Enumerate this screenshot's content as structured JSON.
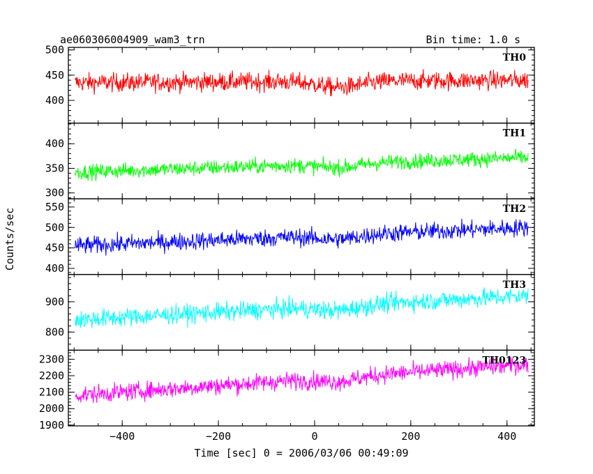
{
  "chart_data": {
    "type": "line",
    "title": "ae060306004909_wam3_trn",
    "bin_label": "Bin time: 1.0 s",
    "xlabel": "Time [sec] 0 = 2006/03/06 00:49:09",
    "ylabel": "Counts/sec",
    "xlim": [
      -512,
      457
    ],
    "x_ticks": [
      -400,
      -200,
      0,
      200,
      400
    ],
    "x_tick_labels": [
      "−400",
      "−200",
      "0",
      "200",
      "400"
    ],
    "x_range": [
      -498,
      444
    ],
    "panels": [
      {
        "name": "TH0",
        "color": "#ff0000",
        "ylim": [
          355,
          505
        ],
        "yticks": [
          400,
          450,
          500
        ],
        "start": 435,
        "end": 440,
        "noise": 24,
        "dip": 12
      },
      {
        "name": "TH1",
        "color": "#00ff00",
        "ylim": [
          288,
          442
        ],
        "yticks": [
          300,
          350,
          400
        ],
        "start": 342,
        "end": 372,
        "noise": 20,
        "dip": 8
      },
      {
        "name": "TH2",
        "color": "#0000ff",
        "ylim": [
          385,
          570
        ],
        "yticks": [
          400,
          450,
          500,
          550
        ],
        "start": 455,
        "end": 500,
        "noise": 28,
        "dip": 10
      },
      {
        "name": "TH3",
        "color": "#00ffff",
        "ylim": [
          740,
          990
        ],
        "yticks": [
          800,
          900
        ],
        "start": 840,
        "end": 920,
        "noise": 40,
        "dip": 15
      },
      {
        "name": "TH0123",
        "color": "#ff00ff",
        "ylim": [
          1895,
          2355
        ],
        "yticks": [
          1900,
          2000,
          2100,
          2200,
          2300
        ],
        "start": 2080,
        "end": 2270,
        "noise": 70,
        "dip": 25
      }
    ]
  }
}
